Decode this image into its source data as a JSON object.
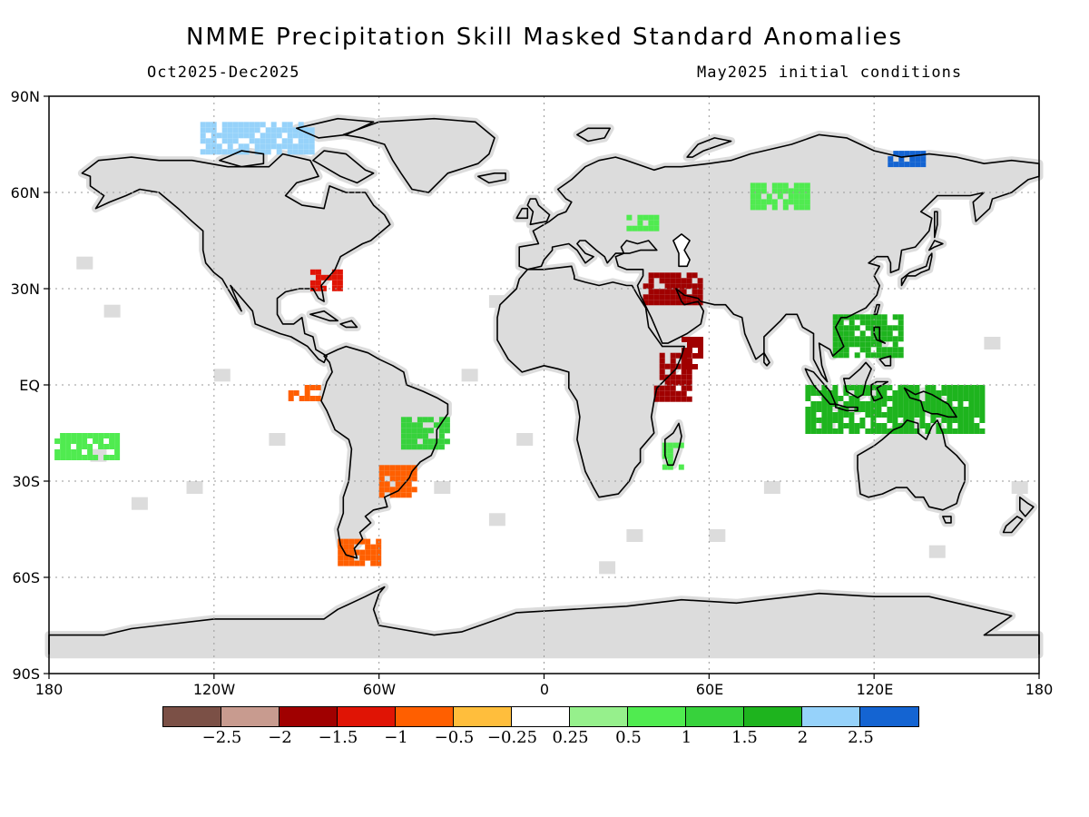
{
  "title": "NMME Precipitation Skill Masked Standard Anomalies",
  "period": "Oct2025-Dec2025",
  "init": "May2025 initial conditions",
  "lat_labels": [
    "90N",
    "60N",
    "30N",
    "EQ",
    "30S",
    "60S",
    "90S"
  ],
  "lon_labels": [
    "180",
    "120W",
    "60W",
    "0",
    "60E",
    "120E",
    "180"
  ],
  "legend": {
    "colors": [
      "#7b5046",
      "#c89b8f",
      "#a00000",
      "#e01405",
      "#ff5f00",
      "#ffbe3c",
      "#ffffff",
      "#96f08c",
      "#50eb50",
      "#37d23c",
      "#1eb41e",
      "#96d2fa",
      "#1464d2"
    ],
    "ticks": [
      "-2.5",
      "-2",
      "-1.5",
      "-1",
      "-0.5",
      "-0.25",
      "0.25",
      "0.5",
      "1",
      "1.5",
      "2",
      "2.5"
    ]
  },
  "map": {
    "projection": "equirectangular",
    "lon_range": [
      -180,
      180
    ],
    "lat_range": [
      -90,
      90
    ],
    "skill_mask_color": "#dcdcdc",
    "anomaly_patches": [
      {
        "region": "Greenland / Canadian Arctic",
        "lon": [
          -125,
          -85
        ],
        "lat": [
          72,
          82
        ],
        "category": "1.5 to 2.5"
      },
      {
        "region": "Northern Siberia",
        "lon": [
          125,
          138
        ],
        "lat": [
          68,
          73
        ],
        "category": "2.5"
      },
      {
        "region": "Western Siberia",
        "lon": [
          75,
          95
        ],
        "lat": [
          56,
          63
        ],
        "category": "0.5 to 1"
      },
      {
        "region": "Eastern Europe",
        "lon": [
          30,
          40
        ],
        "lat": [
          48,
          53
        ],
        "category": "0.5 to 1"
      },
      {
        "region": "Iran / Iraq",
        "lon": [
          36,
          56
        ],
        "lat": [
          25,
          35
        ],
        "category": "-1 to -2"
      },
      {
        "region": "Horn of Africa",
        "lon": [
          40,
          52
        ],
        "lat": [
          -5,
          10
        ],
        "category": "-1.5 to -2"
      },
      {
        "region": "Arabian Sea coast",
        "lon": [
          50,
          56
        ],
        "lat": [
          5,
          15
        ],
        "category": "-1.5 to -2"
      },
      {
        "region": "Southeast US",
        "lon": [
          -85,
          -75
        ],
        "lat": [
          30,
          36
        ],
        "category": "-1 to -1.5"
      },
      {
        "region": "Ecuador / Peru coast",
        "lon": [
          -93,
          -82
        ],
        "lat": [
          -5,
          0
        ],
        "category": "-0.5 to -1"
      },
      {
        "region": "Southern Brazil / Uruguay",
        "lon": [
          -60,
          -48
        ],
        "lat": [
          -35,
          -25
        ],
        "category": "-0.5 to -1"
      },
      {
        "region": "Patagonia",
        "lon": [
          -75,
          -60
        ],
        "lat": [
          -55,
          -48
        ],
        "category": "-0.5 to -1"
      },
      {
        "region": "Philippines",
        "lon": [
          105,
          130
        ],
        "lat": [
          10,
          22
        ],
        "category": "1 to 2"
      },
      {
        "region": "Maritime Continent",
        "lon": [
          95,
          160
        ],
        "lat": [
          -15,
          0
        ],
        "category": "1 to 2"
      },
      {
        "region": "Northeast Brazil",
        "lon": [
          -52,
          -35
        ],
        "lat": [
          -20,
          -10
        ],
        "category": "1 to 1.5"
      },
      {
        "region": "Madagascar",
        "lon": [
          43,
          50
        ],
        "lat": [
          -25,
          -18
        ],
        "category": "0.5 to 1"
      },
      {
        "region": "Central Pacific",
        "lon": [
          -178,
          -155
        ],
        "lat": [
          -22,
          -15
        ],
        "category": "0.5 to 1"
      }
    ]
  }
}
